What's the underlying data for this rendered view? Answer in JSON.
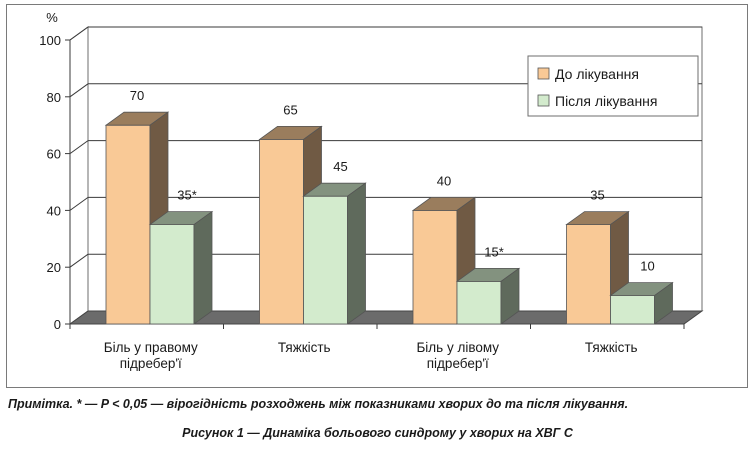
{
  "chart_data": {
    "type": "bar",
    "y_unit": "%",
    "ylim": [
      0,
      100
    ],
    "y_ticks": [
      "0",
      "20",
      "40",
      "60",
      "80",
      "100"
    ],
    "categories": [
      [
        "Біль у правому",
        "підребер'ї"
      ],
      [
        "Тяжкість"
      ],
      [
        "Біль у лівому",
        "підребер'ї"
      ],
      [
        "Тяжкість"
      ]
    ],
    "series": [
      {
        "name": "До лікування",
        "values": [
          70,
          65,
          40,
          35
        ],
        "labels": [
          "70",
          "65",
          "40",
          "35"
        ],
        "color": "#f9c996"
      },
      {
        "name": "Після лікування",
        "values": [
          35,
          45,
          15,
          10
        ],
        "labels": [
          "35*",
          "45",
          "15*",
          "10"
        ],
        "color": "#d3ebcd"
      }
    ],
    "grid": true,
    "legend_position": "top-right"
  },
  "note": "Примітка. * — P < 0,05 — вірогідність розходжень між показниками хворих до та після лікування.",
  "caption": "Рисунок 1 — Динаміка больового синдрому у хворих на ХВГ С"
}
